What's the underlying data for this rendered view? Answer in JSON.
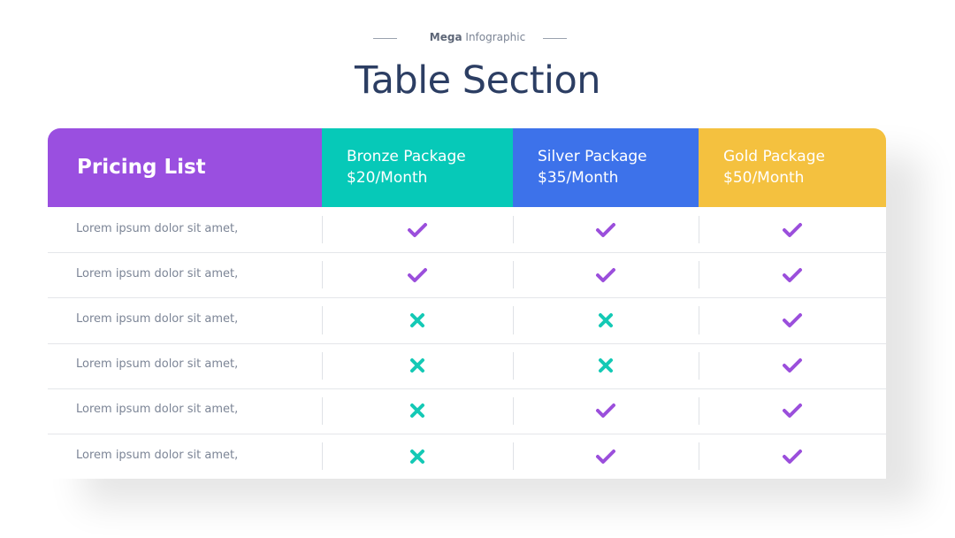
{
  "header": {
    "kicker_bold": "Mega",
    "kicker": "Infographic",
    "title": "Table Section"
  },
  "table": {
    "corner": "Pricing List",
    "packages": [
      {
        "name": "Bronze Package",
        "price": "$20/Month",
        "color": "#06c9b8"
      },
      {
        "name": "Silver Package",
        "price": "$35/Month",
        "color": "#3d72ea"
      },
      {
        "name": "Gold Package",
        "price": "$50/Month",
        "color": "#f4c13f"
      }
    ],
    "corner_color": "#9a4fe0",
    "check_color": "#9b4fdc",
    "cross_color": "#14c9b5",
    "rows": [
      {
        "label": "Lorem ipsum dolor sit amet,",
        "included": [
          true,
          true,
          true
        ]
      },
      {
        "label": "Lorem ipsum dolor sit amet,",
        "included": [
          true,
          true,
          true
        ]
      },
      {
        "label": "Lorem ipsum dolor sit amet,",
        "included": [
          false,
          false,
          true
        ]
      },
      {
        "label": "Lorem ipsum dolor sit amet,",
        "included": [
          false,
          false,
          true
        ]
      },
      {
        "label": "Lorem ipsum dolor sit amet,",
        "included": [
          false,
          true,
          true
        ]
      },
      {
        "label": "Lorem ipsum dolor sit amet,",
        "included": [
          false,
          true,
          true
        ]
      }
    ]
  }
}
